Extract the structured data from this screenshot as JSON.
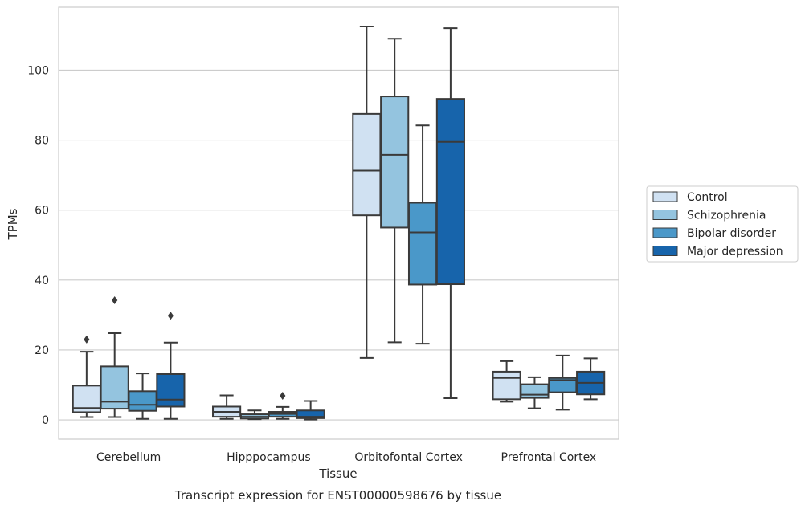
{
  "chart_data": {
    "type": "box",
    "title": "Transcript expression for ENST00000598676 by tissue",
    "xlabel": "Tissue",
    "ylabel": "TPMs",
    "ylim": [
      -5.5,
      118
    ],
    "yticks": [
      0,
      20,
      40,
      60,
      80,
      100
    ],
    "grid": "horizontal",
    "legend_position": "outside-right",
    "categories": [
      "Cerebellum",
      "Hipppocampus",
      "Orbitofontal Cortex",
      "Prefrontal Cortex"
    ],
    "series": [
      {
        "name": "Control",
        "color": "#d0e1f2",
        "boxes": [
          {
            "whisker_low": 0.8,
            "q1": 2.2,
            "median": 3.4,
            "q3": 9.8,
            "whisker_high": 19.5,
            "outliers": [
              23
            ]
          },
          {
            "whisker_low": 0.3,
            "q1": 0.9,
            "median": 2.3,
            "q3": 3.8,
            "whisker_high": 7.0,
            "outliers": []
          },
          {
            "whisker_low": 17.7,
            "q1": 58.5,
            "median": 71.3,
            "q3": 87.5,
            "whisker_high": 112.5,
            "outliers": []
          },
          {
            "whisker_low": 5.2,
            "q1": 5.9,
            "median": 12.0,
            "q3": 13.8,
            "whisker_high": 16.8,
            "outliers": []
          }
        ]
      },
      {
        "name": "Schizophrenia",
        "color": "#94c4df",
        "boxes": [
          {
            "whisker_low": 0.8,
            "q1": 3.2,
            "median": 5.2,
            "q3": 15.3,
            "whisker_high": 24.8,
            "outliers": [
              34.2
            ]
          },
          {
            "whisker_low": 0.2,
            "q1": 0.4,
            "median": 0.9,
            "q3": 1.6,
            "whisker_high": 2.7,
            "outliers": []
          },
          {
            "whisker_low": 22.2,
            "q1": 55.0,
            "median": 75.8,
            "q3": 92.5,
            "whisker_high": 109.0,
            "outliers": []
          },
          {
            "whisker_low": 3.3,
            "q1": 6.3,
            "median": 7.2,
            "q3": 10.2,
            "whisker_high": 12.2,
            "outliers": []
          }
        ]
      },
      {
        "name": "Bipolar disorder",
        "color": "#4a98c9",
        "boxes": [
          {
            "whisker_low": 0.3,
            "q1": 2.6,
            "median": 4.3,
            "q3": 8.2,
            "whisker_high": 13.3,
            "outliers": []
          },
          {
            "whisker_low": 0.3,
            "q1": 0.9,
            "median": 1.7,
            "q3": 2.3,
            "whisker_high": 3.7,
            "outliers": [
              6.9
            ]
          },
          {
            "whisker_low": 21.8,
            "q1": 38.7,
            "median": 53.6,
            "q3": 62.1,
            "whisker_high": 84.2,
            "outliers": []
          },
          {
            "whisker_low": 2.9,
            "q1": 7.9,
            "median": 11.4,
            "q3": 12.0,
            "whisker_high": 18.4,
            "outliers": []
          }
        ]
      },
      {
        "name": "Major depression",
        "color": "#1764ab",
        "boxes": [
          {
            "whisker_low": 0.3,
            "q1": 3.8,
            "median": 5.8,
            "q3": 13.1,
            "whisker_high": 22.1,
            "outliers": [
              29.8
            ]
          },
          {
            "whisker_low": 0.1,
            "q1": 0.5,
            "median": 0.9,
            "q3": 2.7,
            "whisker_high": 5.4,
            "outliers": []
          },
          {
            "whisker_low": 6.2,
            "q1": 38.8,
            "median": 79.5,
            "q3": 91.8,
            "whisker_high": 112.0,
            "outliers": []
          },
          {
            "whisker_low": 5.9,
            "q1": 7.3,
            "median": 10.6,
            "q3": 13.8,
            "whisker_high": 17.6,
            "outliers": []
          }
        ]
      }
    ]
  }
}
